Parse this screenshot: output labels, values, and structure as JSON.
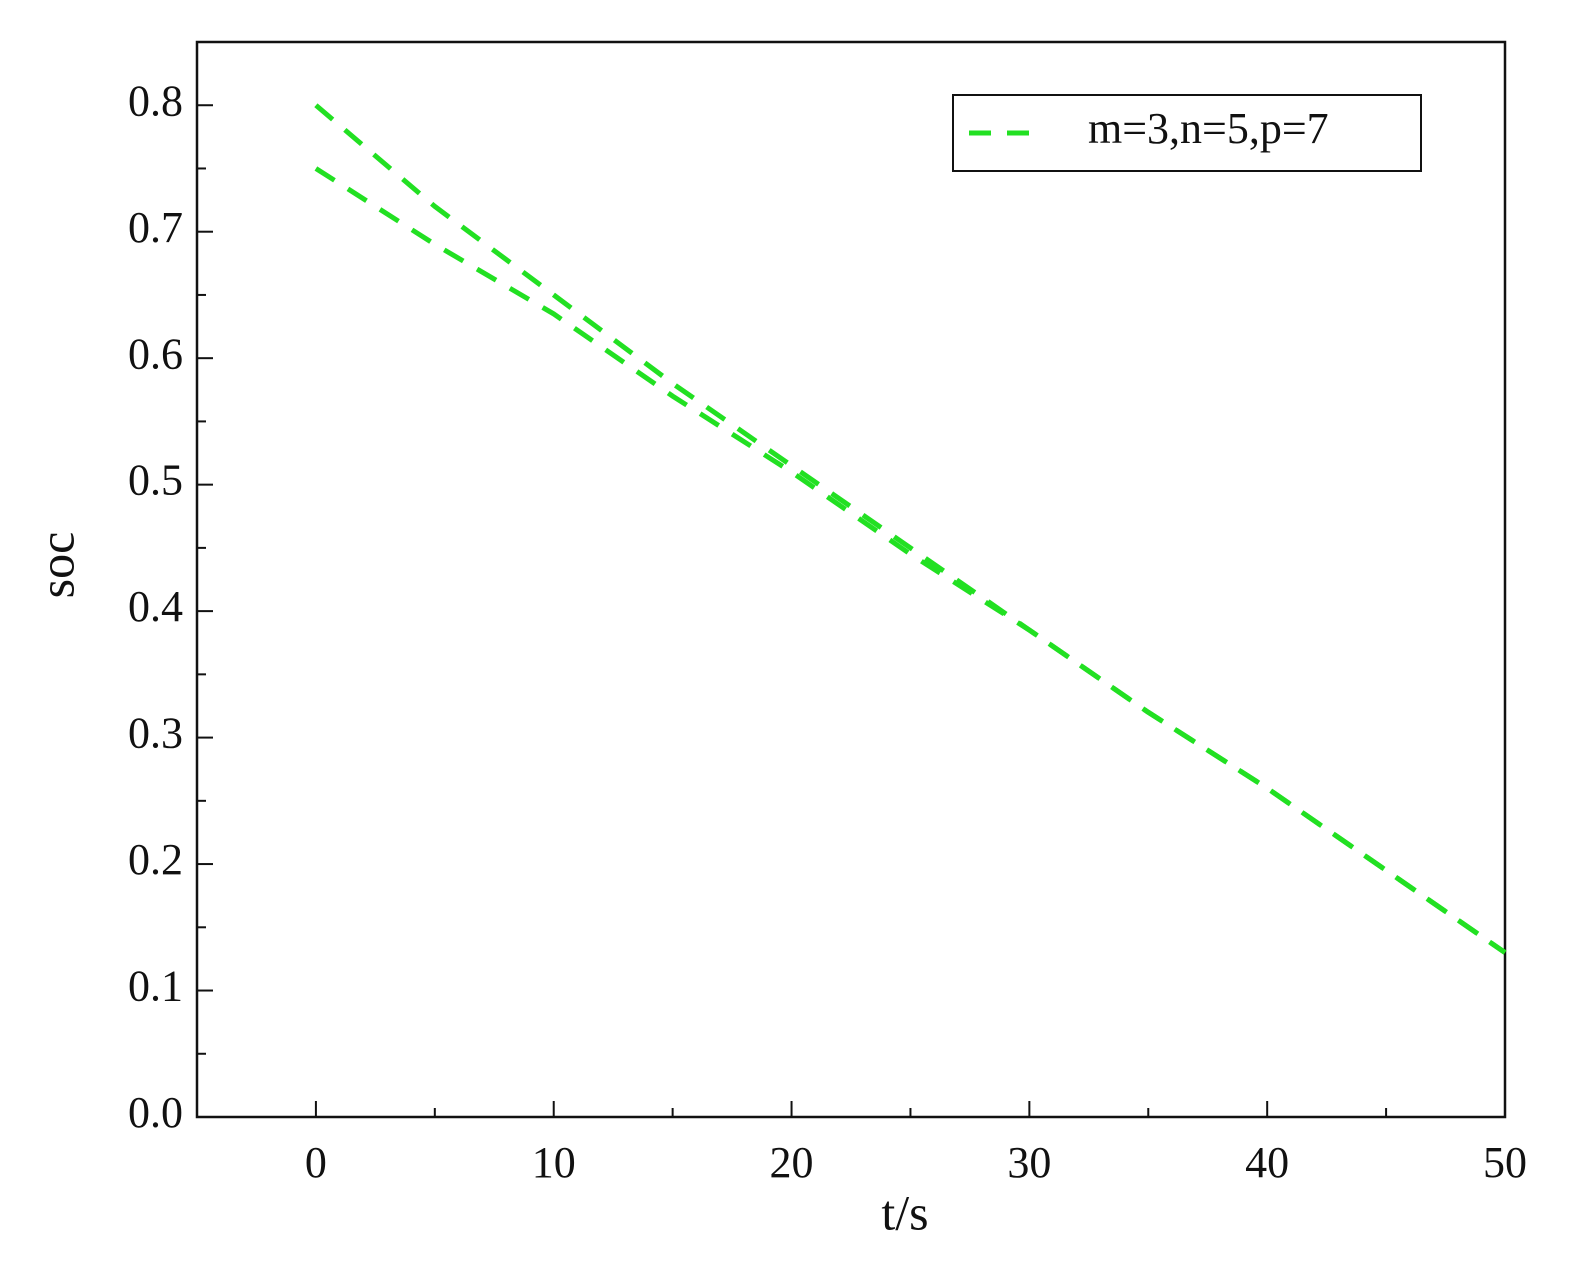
{
  "chart_data": {
    "type": "line",
    "x_label": "t/s",
    "y_label": "soc",
    "x": [
      0,
      5,
      10,
      15,
      20,
      25,
      30,
      35,
      40,
      45,
      50
    ],
    "series": [
      {
        "name": "m=3,n=5,p=7",
        "color": "#22e022",
        "values": [
          0.8,
          0.72,
          0.65,
          0.58,
          0.515,
          0.45,
          0.385,
          0.32,
          0.26,
          0.195,
          0.13
        ]
      },
      {
        "color": "#22e022",
        "values": [
          0.75,
          0.69,
          0.635,
          0.57,
          0.51,
          0.445,
          0.385,
          0.32,
          0.26,
          0.195,
          0.13
        ]
      }
    ],
    "xlim": [
      -5,
      50
    ],
    "xticks": [
      0,
      10,
      20,
      30,
      40,
      50
    ],
    "ylim": [
      0,
      0.85
    ],
    "yticks": [
      {
        "value": 0,
        "label": "0.0"
      },
      0.1,
      0.2,
      0.3,
      0.4,
      0.5,
      0.6,
      0.7,
      0.8
    ],
    "grid": false,
    "legend": "upper right",
    "dashed": true
  }
}
